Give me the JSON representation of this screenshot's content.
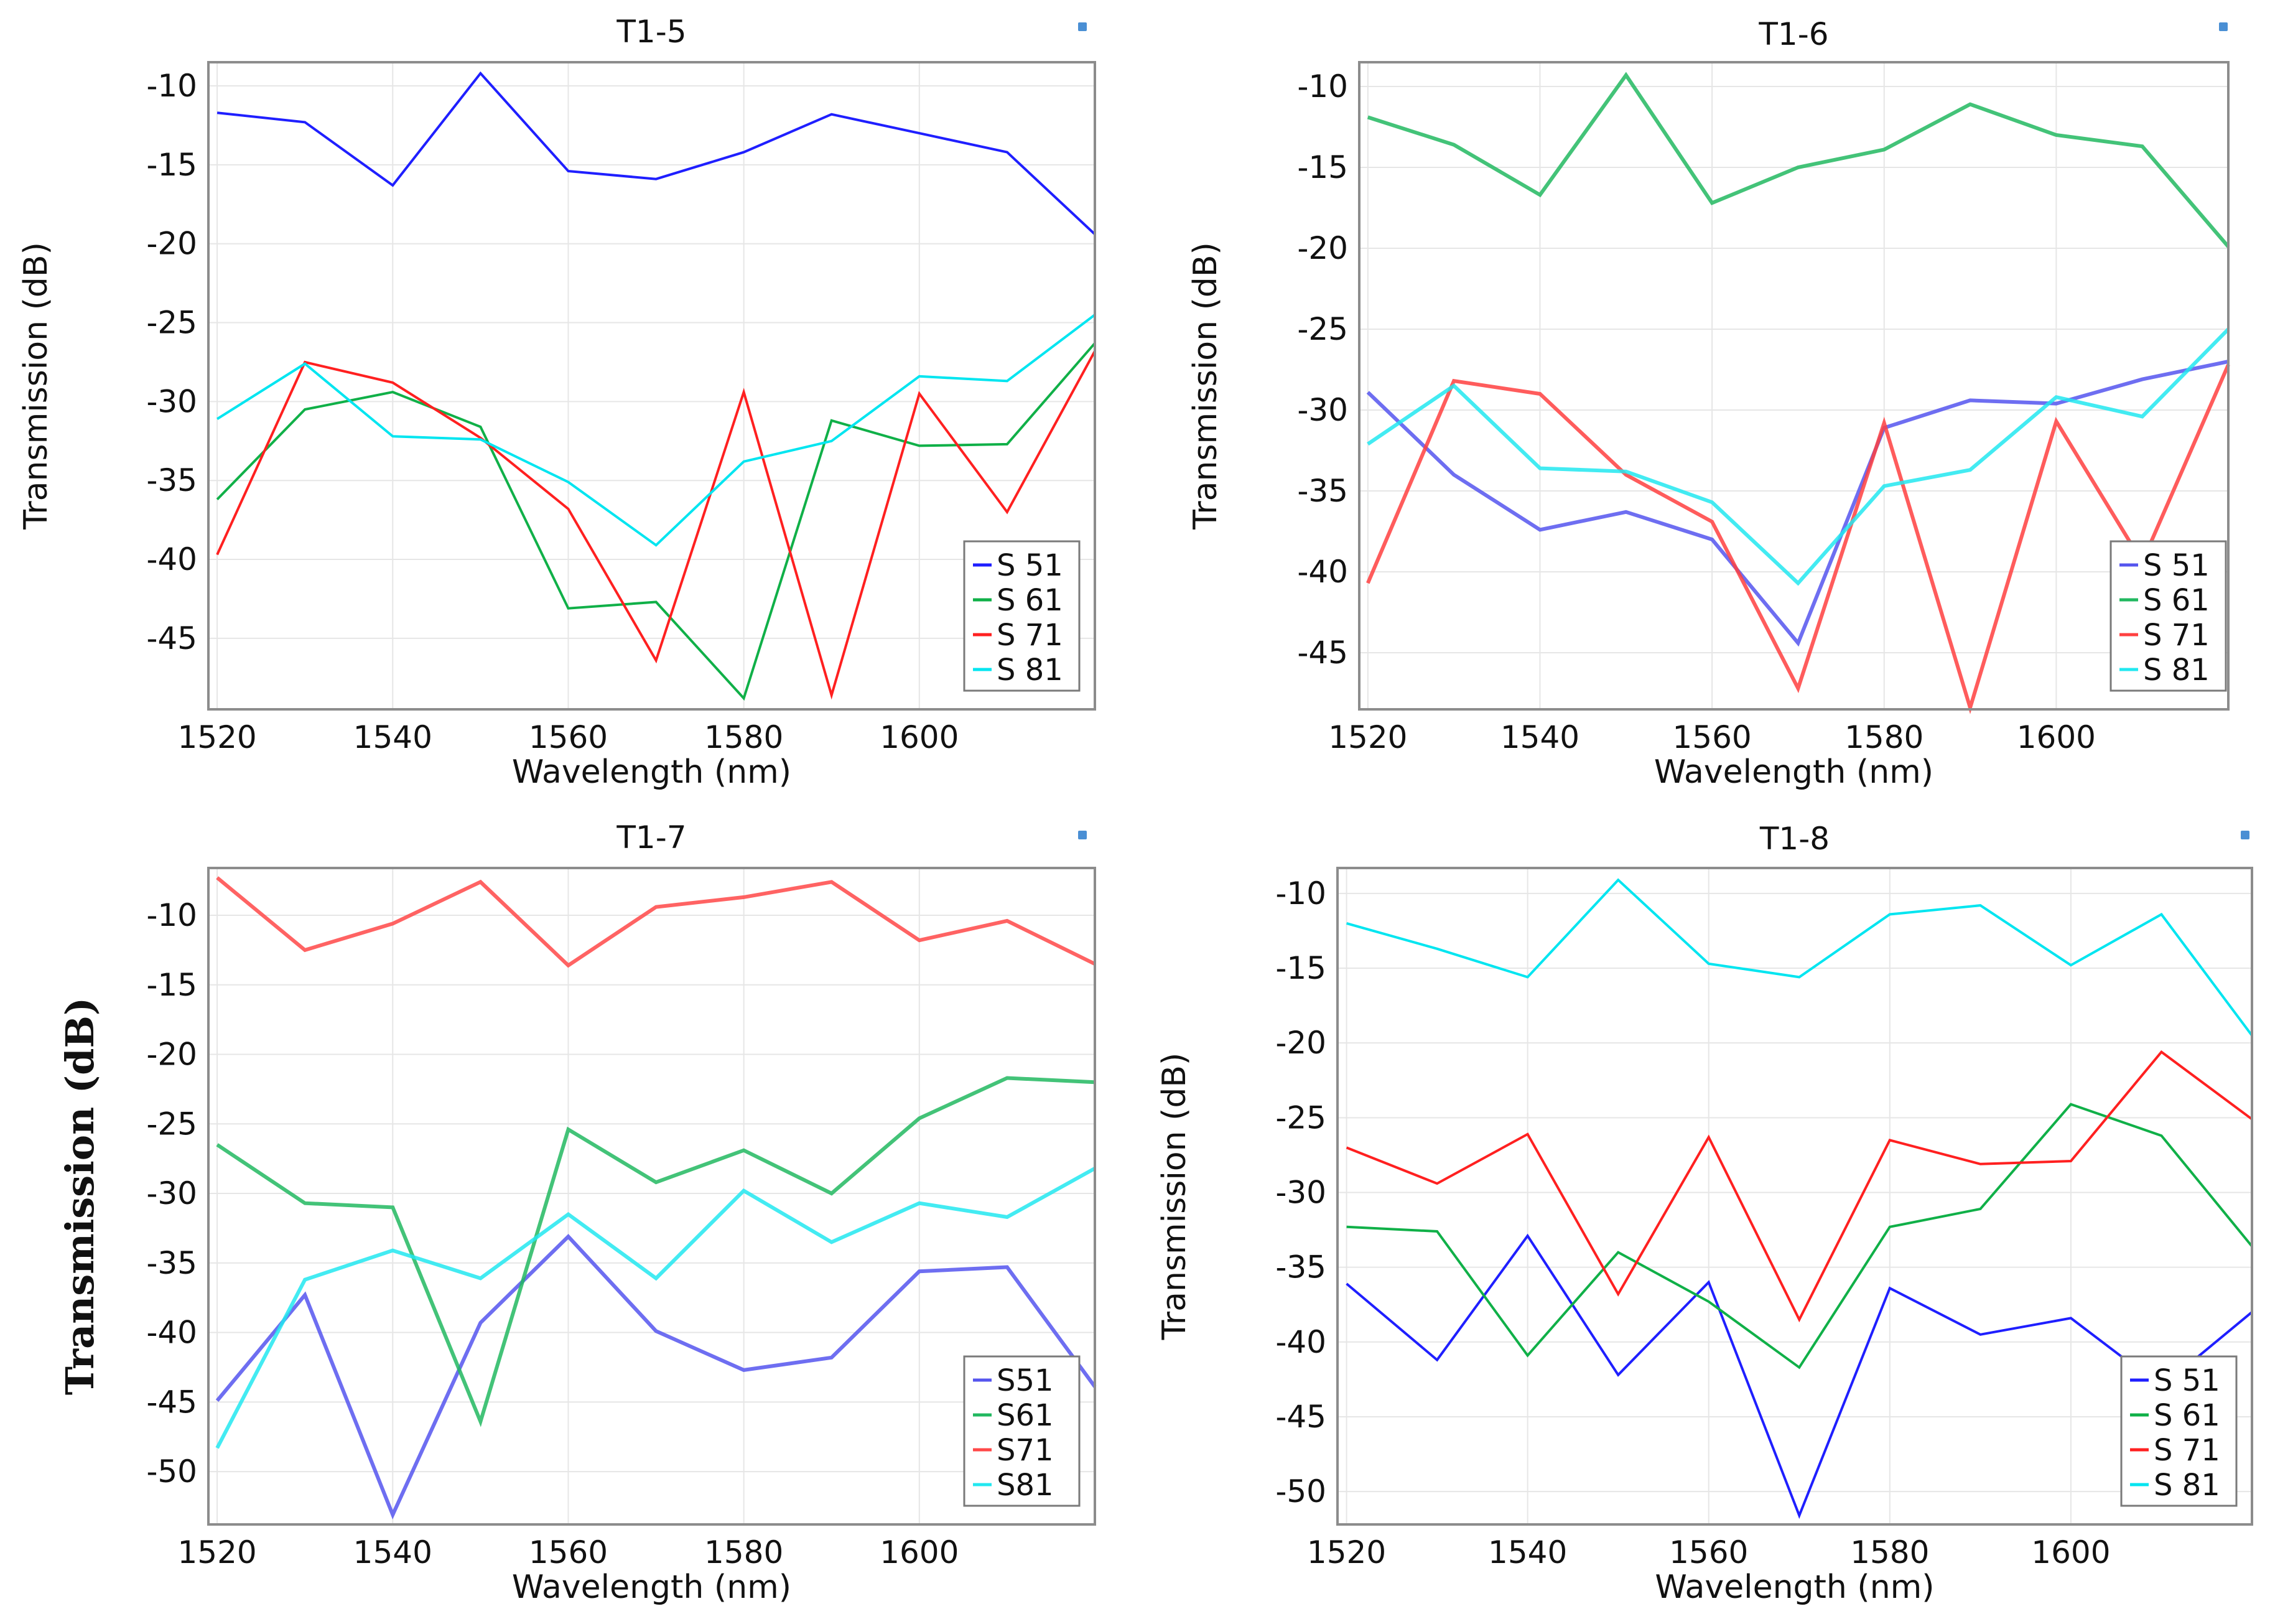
{
  "chart_data": [
    {
      "type": "line",
      "title": "T1-5",
      "xlabel": "Wavelength (nm)",
      "ylabel": "Transmission (dB)",
      "xlim": [
        1519,
        1620
      ],
      "ylim": [
        -49.5,
        -8.5
      ],
      "xticks": [
        1520,
        1540,
        1560,
        1580,
        1600
      ],
      "yticks": [
        -10,
        -15,
        -20,
        -25,
        -30,
        -35,
        -40,
        -45
      ],
      "grid": true,
      "legend_position": "bottom-right",
      "x": [
        1520,
        1530,
        1540,
        1550,
        1560,
        1570,
        1580,
        1590,
        1600,
        1610,
        1620
      ],
      "series": [
        {
          "name": "S 51",
          "color": "#1f1fff",
          "values": [
            -11.7,
            -12.3,
            -16.3,
            -9.2,
            -15.4,
            -15.9,
            -14.2,
            -11.8,
            -13.0,
            -14.2,
            -19.4
          ]
        },
        {
          "name": "S 61",
          "color": "#10b048",
          "values": [
            -36.2,
            -30.5,
            -29.4,
            -31.6,
            -43.1,
            -42.7,
            -48.8,
            -31.2,
            -32.8,
            -32.7,
            -26.3
          ]
        },
        {
          "name": "S 71",
          "color": "#ff2020",
          "values": [
            -39.7,
            -27.5,
            -28.8,
            -32.3,
            -36.8,
            -46.4,
            -29.4,
            -48.6,
            -29.5,
            -37.0,
            -26.8
          ]
        },
        {
          "name": "S 81",
          "color": "#00e5f0",
          "values": [
            -31.1,
            -27.6,
            -32.2,
            -32.4,
            -35.1,
            -39.1,
            -33.8,
            -32.5,
            -28.4,
            -28.7,
            -24.5
          ]
        }
      ]
    },
    {
      "type": "line",
      "title": "T1-6",
      "xlabel": "Wavelength (nm)",
      "ylabel": "Transmission (dB)",
      "xlim": [
        1519,
        1620
      ],
      "ylim": [
        -48.5,
        -8.5
      ],
      "xticks": [
        1520,
        1540,
        1560,
        1580,
        1600
      ],
      "yticks": [
        -10,
        -15,
        -20,
        -25,
        -30,
        -35,
        -40,
        -45
      ],
      "grid": true,
      "legend_position": "bottom-right",
      "x": [
        1520,
        1530,
        1540,
        1550,
        1560,
        1570,
        1580,
        1590,
        1600,
        1610,
        1620
      ],
      "series": [
        {
          "name": "S 51",
          "color": "#5555ee",
          "values": [
            -28.9,
            -34.0,
            -37.4,
            -36.3,
            -38.0,
            -44.4,
            -31.1,
            -29.4,
            -29.6,
            -28.1,
            -27.0
          ]
        },
        {
          "name": "S 61",
          "color": "#22b860",
          "values": [
            -11.9,
            -13.6,
            -16.7,
            -9.3,
            -17.2,
            -15.0,
            -13.9,
            -11.1,
            -13.0,
            -13.7,
            -19.9
          ]
        },
        {
          "name": "S 71",
          "color": "#ff4040",
          "values": [
            -40.7,
            -28.2,
            -29.0,
            -34.0,
            -36.9,
            -47.2,
            -30.8,
            -48.4,
            -30.7,
            -39.4,
            -27.2
          ]
        },
        {
          "name": "S 81",
          "color": "#22e8f0",
          "values": [
            -32.1,
            -28.5,
            -33.6,
            -33.8,
            -35.7,
            -40.7,
            -34.7,
            -33.7,
            -29.2,
            -30.4,
            -25.0
          ]
        }
      ]
    },
    {
      "type": "line",
      "title": "T1-7",
      "xlabel": "Wavelength (nm)",
      "ylabel": "Transmission (dB)",
      "xlim": [
        1519,
        1620
      ],
      "ylim": [
        -53.8,
        -6.6
      ],
      "xticks": [
        1520,
        1540,
        1560,
        1580,
        1600
      ],
      "yticks": [
        -10,
        -15,
        -20,
        -25,
        -30,
        -35,
        -40,
        -45,
        -50
      ],
      "grid": true,
      "legend_position": "bottom-right",
      "x": [
        1520,
        1530,
        1540,
        1550,
        1560,
        1570,
        1580,
        1590,
        1600,
        1610,
        1620
      ],
      "series": [
        {
          "name": "S51",
          "color": "#5555ee",
          "values": [
            -44.9,
            -37.3,
            -53.1,
            -39.3,
            -33.1,
            -39.9,
            -42.7,
            -41.8,
            -35.6,
            -35.3,
            -43.9
          ]
        },
        {
          "name": "S61",
          "color": "#22b860",
          "values": [
            -26.5,
            -30.7,
            -31.0,
            -46.4,
            -25.4,
            -29.2,
            -26.9,
            -30.0,
            -24.6,
            -21.7,
            -22.0
          ]
        },
        {
          "name": "S71",
          "color": "#ff4848",
          "values": [
            -7.3,
            -12.5,
            -10.6,
            -7.6,
            -13.6,
            -9.4,
            -8.7,
            -7.6,
            -11.8,
            -10.4,
            -13.5
          ]
        },
        {
          "name": "S81",
          "color": "#22e8f0",
          "values": [
            -48.3,
            -36.2,
            -34.1,
            -36.1,
            -31.5,
            -36.1,
            -29.8,
            -33.5,
            -30.7,
            -31.7,
            -28.2
          ]
        }
      ]
    },
    {
      "type": "line",
      "title": "T1-8",
      "xlabel": "Wavelength (nm)",
      "ylabel": "Transmission (dB)",
      "xlim": [
        1519,
        1620
      ],
      "ylim": [
        -52.2,
        -8.3
      ],
      "xticks": [
        1520,
        1540,
        1560,
        1580,
        1600
      ],
      "yticks": [
        -10,
        -15,
        -20,
        -25,
        -30,
        -35,
        -40,
        -45,
        -50
      ],
      "grid": true,
      "legend_position": "bottom-right",
      "x": [
        1520,
        1530,
        1540,
        1550,
        1560,
        1570,
        1580,
        1590,
        1600,
        1610,
        1620
      ],
      "series": [
        {
          "name": "S 51",
          "color": "#1f1fff",
          "values": [
            -36.1,
            -41.2,
            -32.9,
            -42.2,
            -36.0,
            -51.6,
            -36.4,
            -39.5,
            -38.4,
            -43.0,
            -38.0
          ]
        },
        {
          "name": "S 61",
          "color": "#10b048",
          "values": [
            -32.3,
            -32.6,
            -40.9,
            -34.0,
            -37.3,
            -41.7,
            -32.3,
            -31.1,
            -24.1,
            -26.2,
            -33.6
          ]
        },
        {
          "name": "S 71",
          "color": "#ff2020",
          "values": [
            -27.0,
            -29.4,
            -26.1,
            -36.8,
            -26.3,
            -38.5,
            -26.5,
            -28.1,
            -27.9,
            -20.6,
            -25.1
          ]
        },
        {
          "name": "S 81",
          "color": "#00e5f0",
          "values": [
            -12.0,
            -13.7,
            -15.6,
            -9.1,
            -14.7,
            -15.6,
            -11.4,
            -10.8,
            -14.8,
            -11.4,
            -19.5
          ]
        }
      ]
    }
  ]
}
